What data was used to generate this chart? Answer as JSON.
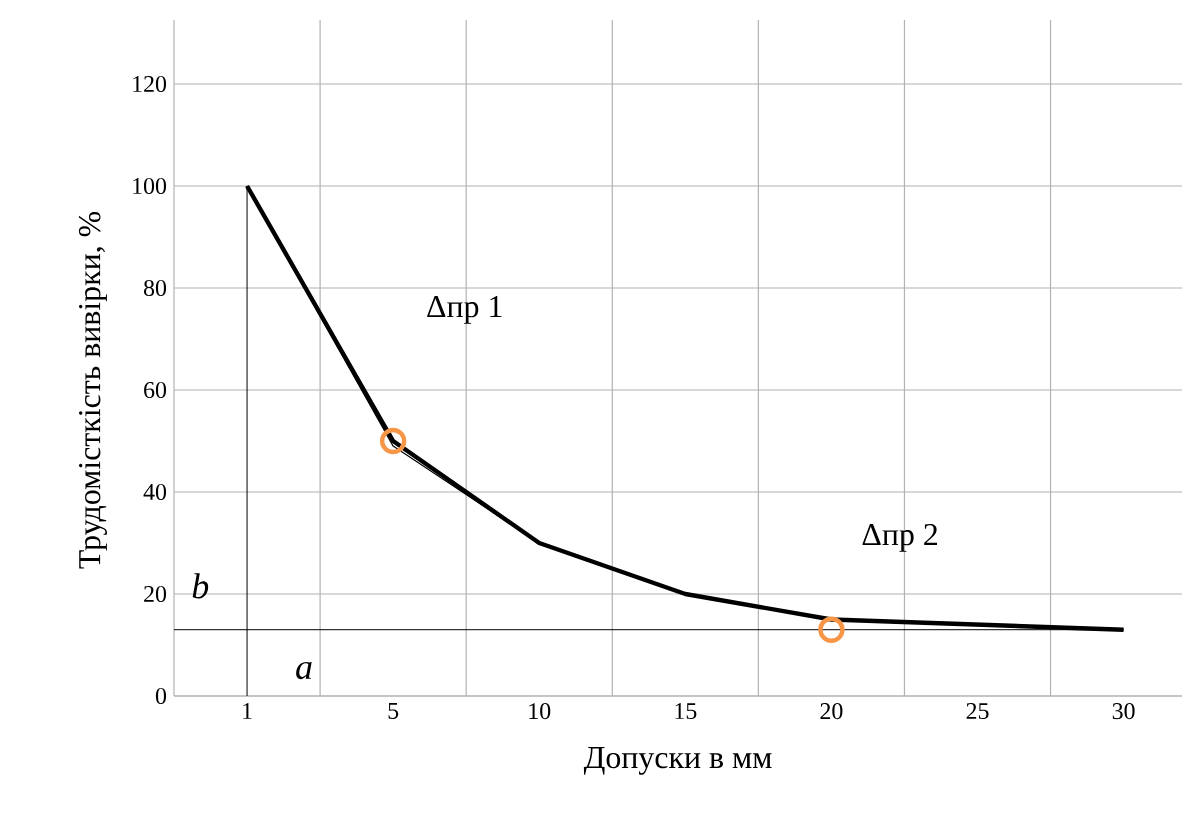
{
  "chart_data": {
    "type": "line",
    "xlabel": "Допуски в мм",
    "ylabel": "Трудомісткість вивірки, %",
    "categories": [
      "1",
      "5",
      "10",
      "15",
      "20",
      "25",
      "30"
    ],
    "series": [
      {
        "color": "#000000",
        "values": [
          100,
          50,
          30,
          20,
          15,
          14,
          13
        ]
      },
      {
        "color": "#000000",
        "values": [
          100,
          49,
          30,
          20,
          15,
          14,
          13
        ]
      },
      {
        "type": "scatter",
        "color": "#f79646",
        "x": [
          "5",
          "20"
        ],
        "values": [
          50,
          13
        ],
        "marker": "circle"
      }
    ],
    "ylim": [
      0,
      120
    ],
    "yticks": [
      0,
      20,
      40,
      60,
      80,
      100,
      120
    ],
    "grid": true,
    "marker": "none",
    "line_style": "solid",
    "ref_lines": [
      {
        "axis": "x",
        "value": "1"
      },
      {
        "axis": "y",
        "value": 13
      }
    ],
    "annotations": [
      "Δпр 1",
      "Δпр 2",
      "b",
      "a"
    ]
  }
}
